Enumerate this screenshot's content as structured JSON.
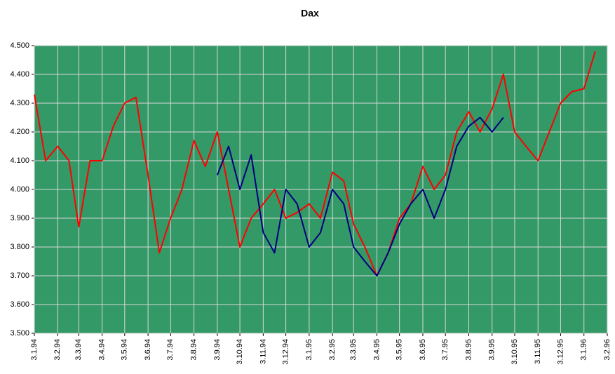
{
  "chart_data": {
    "type": "line",
    "title": "Dax",
    "x": [
      "1994-01-03",
      "1994-01-18",
      "1994-02-03",
      "1994-02-18",
      "1994-03-03",
      "1994-03-18",
      "1994-04-03",
      "1994-04-18",
      "1994-05-03",
      "1994-05-18",
      "1994-06-03",
      "1994-06-18",
      "1994-07-03",
      "1994-07-18",
      "1994-08-03",
      "1994-08-18",
      "1994-09-03",
      "1994-09-18",
      "1994-10-03",
      "1994-10-18",
      "1994-11-03",
      "1994-11-18",
      "1994-12-03",
      "1994-12-18",
      "1995-01-03",
      "1995-01-18",
      "1995-02-03",
      "1995-02-18",
      "1995-03-03",
      "1995-03-18",
      "1995-04-03",
      "1995-04-18",
      "1995-05-03",
      "1995-05-18",
      "1995-06-03",
      "1995-06-18",
      "1995-07-03",
      "1995-07-18",
      "1995-08-03",
      "1995-08-18",
      "1995-09-03",
      "1995-09-18",
      "1995-10-03",
      "1995-10-18",
      "1995-11-03",
      "1995-11-18",
      "1995-12-03",
      "1995-12-18",
      "1996-01-03",
      "1996-01-18"
    ],
    "series": [
      {
        "color": "#ff0000",
        "values": [
          4330,
          4100,
          4150,
          4100,
          3870,
          4100,
          4100,
          4220,
          4300,
          4320,
          4050,
          3780,
          3900,
          4000,
          4170,
          4080,
          4200,
          4000,
          3800,
          3900,
          3950,
          4000,
          3900,
          3920,
          3950,
          3900,
          4060,
          4030,
          3880,
          3800,
          3700,
          3780,
          3900,
          3950,
          4080,
          4000,
          4050,
          4200,
          4270,
          4200,
          4280,
          4400,
          4200,
          4150,
          4100,
          4200,
          4300,
          4340,
          4350,
          4480
        ]
      },
      {
        "color": "#000080",
        "values": [
          null,
          null,
          null,
          null,
          null,
          null,
          null,
          null,
          null,
          null,
          null,
          null,
          null,
          null,
          null,
          null,
          4050,
          4150,
          4000,
          4120,
          3850,
          3780,
          4000,
          3950,
          3800,
          3850,
          4000,
          3950,
          3800,
          3750,
          3700,
          3780,
          3880,
          3950,
          4000,
          3900,
          4000,
          4150,
          4220,
          4250,
          4200,
          4250,
          null,
          null,
          null,
          null,
          null,
          null,
          null,
          null
        ]
      }
    ],
    "xlim": [
      "1994-01-03",
      "1996-02-03"
    ],
    "xticks": [
      {
        "value": "1994-01-03",
        "label": "3.1.94"
      },
      {
        "value": "1994-02-03",
        "label": "3.2.94"
      },
      {
        "value": "1994-03-03",
        "label": "3.3.94"
      },
      {
        "value": "1994-04-03",
        "label": "3.4.94"
      },
      {
        "value": "1994-05-03",
        "label": "3.5.94"
      },
      {
        "value": "1994-06-03",
        "label": "3.6.94"
      },
      {
        "value": "1994-07-03",
        "label": "3.7.94"
      },
      {
        "value": "1994-08-03",
        "label": "3.8.94"
      },
      {
        "value": "1994-09-03",
        "label": "3.9.94"
      },
      {
        "value": "1994-10-03",
        "label": "3.10.94"
      },
      {
        "value": "1994-11-03",
        "label": "3.11.94"
      },
      {
        "value": "1994-12-03",
        "label": "3.12.94"
      },
      {
        "value": "1995-01-03",
        "label": "3.1.95"
      },
      {
        "value": "1995-02-03",
        "label": "3.2.95"
      },
      {
        "value": "1995-03-03",
        "label": "3.3.95"
      },
      {
        "value": "1995-04-03",
        "label": "3.4.95"
      },
      {
        "value": "1995-05-03",
        "label": "3.5.95"
      },
      {
        "value": "1995-06-03",
        "label": "3.6.95"
      },
      {
        "value": "1995-07-03",
        "label": "3.7.95"
      },
      {
        "value": "1995-08-03",
        "label": "3.8.95"
      },
      {
        "value": "1995-09-03",
        "label": "3.9.95"
      },
      {
        "value": "1995-10-03",
        "label": "3.10.95"
      },
      {
        "value": "1995-11-03",
        "label": "3.11.95"
      },
      {
        "value": "1995-12-03",
        "label": "3.12.95"
      },
      {
        "value": "1996-01-03",
        "label": "3.1.96"
      },
      {
        "value": "1996-02-03",
        "label": "3.2.96"
      }
    ],
    "ylim": [
      3500,
      4500
    ],
    "yticks": [
      {
        "value": 3500,
        "label": "3.500"
      },
      {
        "value": 3600,
        "label": "3.600"
      },
      {
        "value": 3700,
        "label": "3.700"
      },
      {
        "value": 3800,
        "label": "3.800"
      },
      {
        "value": 3900,
        "label": "3.900"
      },
      {
        "value": 4000,
        "label": "4.000"
      },
      {
        "value": 4100,
        "label": "4.100"
      },
      {
        "value": 4200,
        "label": "4.200"
      },
      {
        "value": 4300,
        "label": "4.300"
      },
      {
        "value": 4400,
        "label": "4.400"
      },
      {
        "value": 4500,
        "label": "4.500"
      }
    ],
    "grid": true,
    "plot_background": "#339966"
  }
}
